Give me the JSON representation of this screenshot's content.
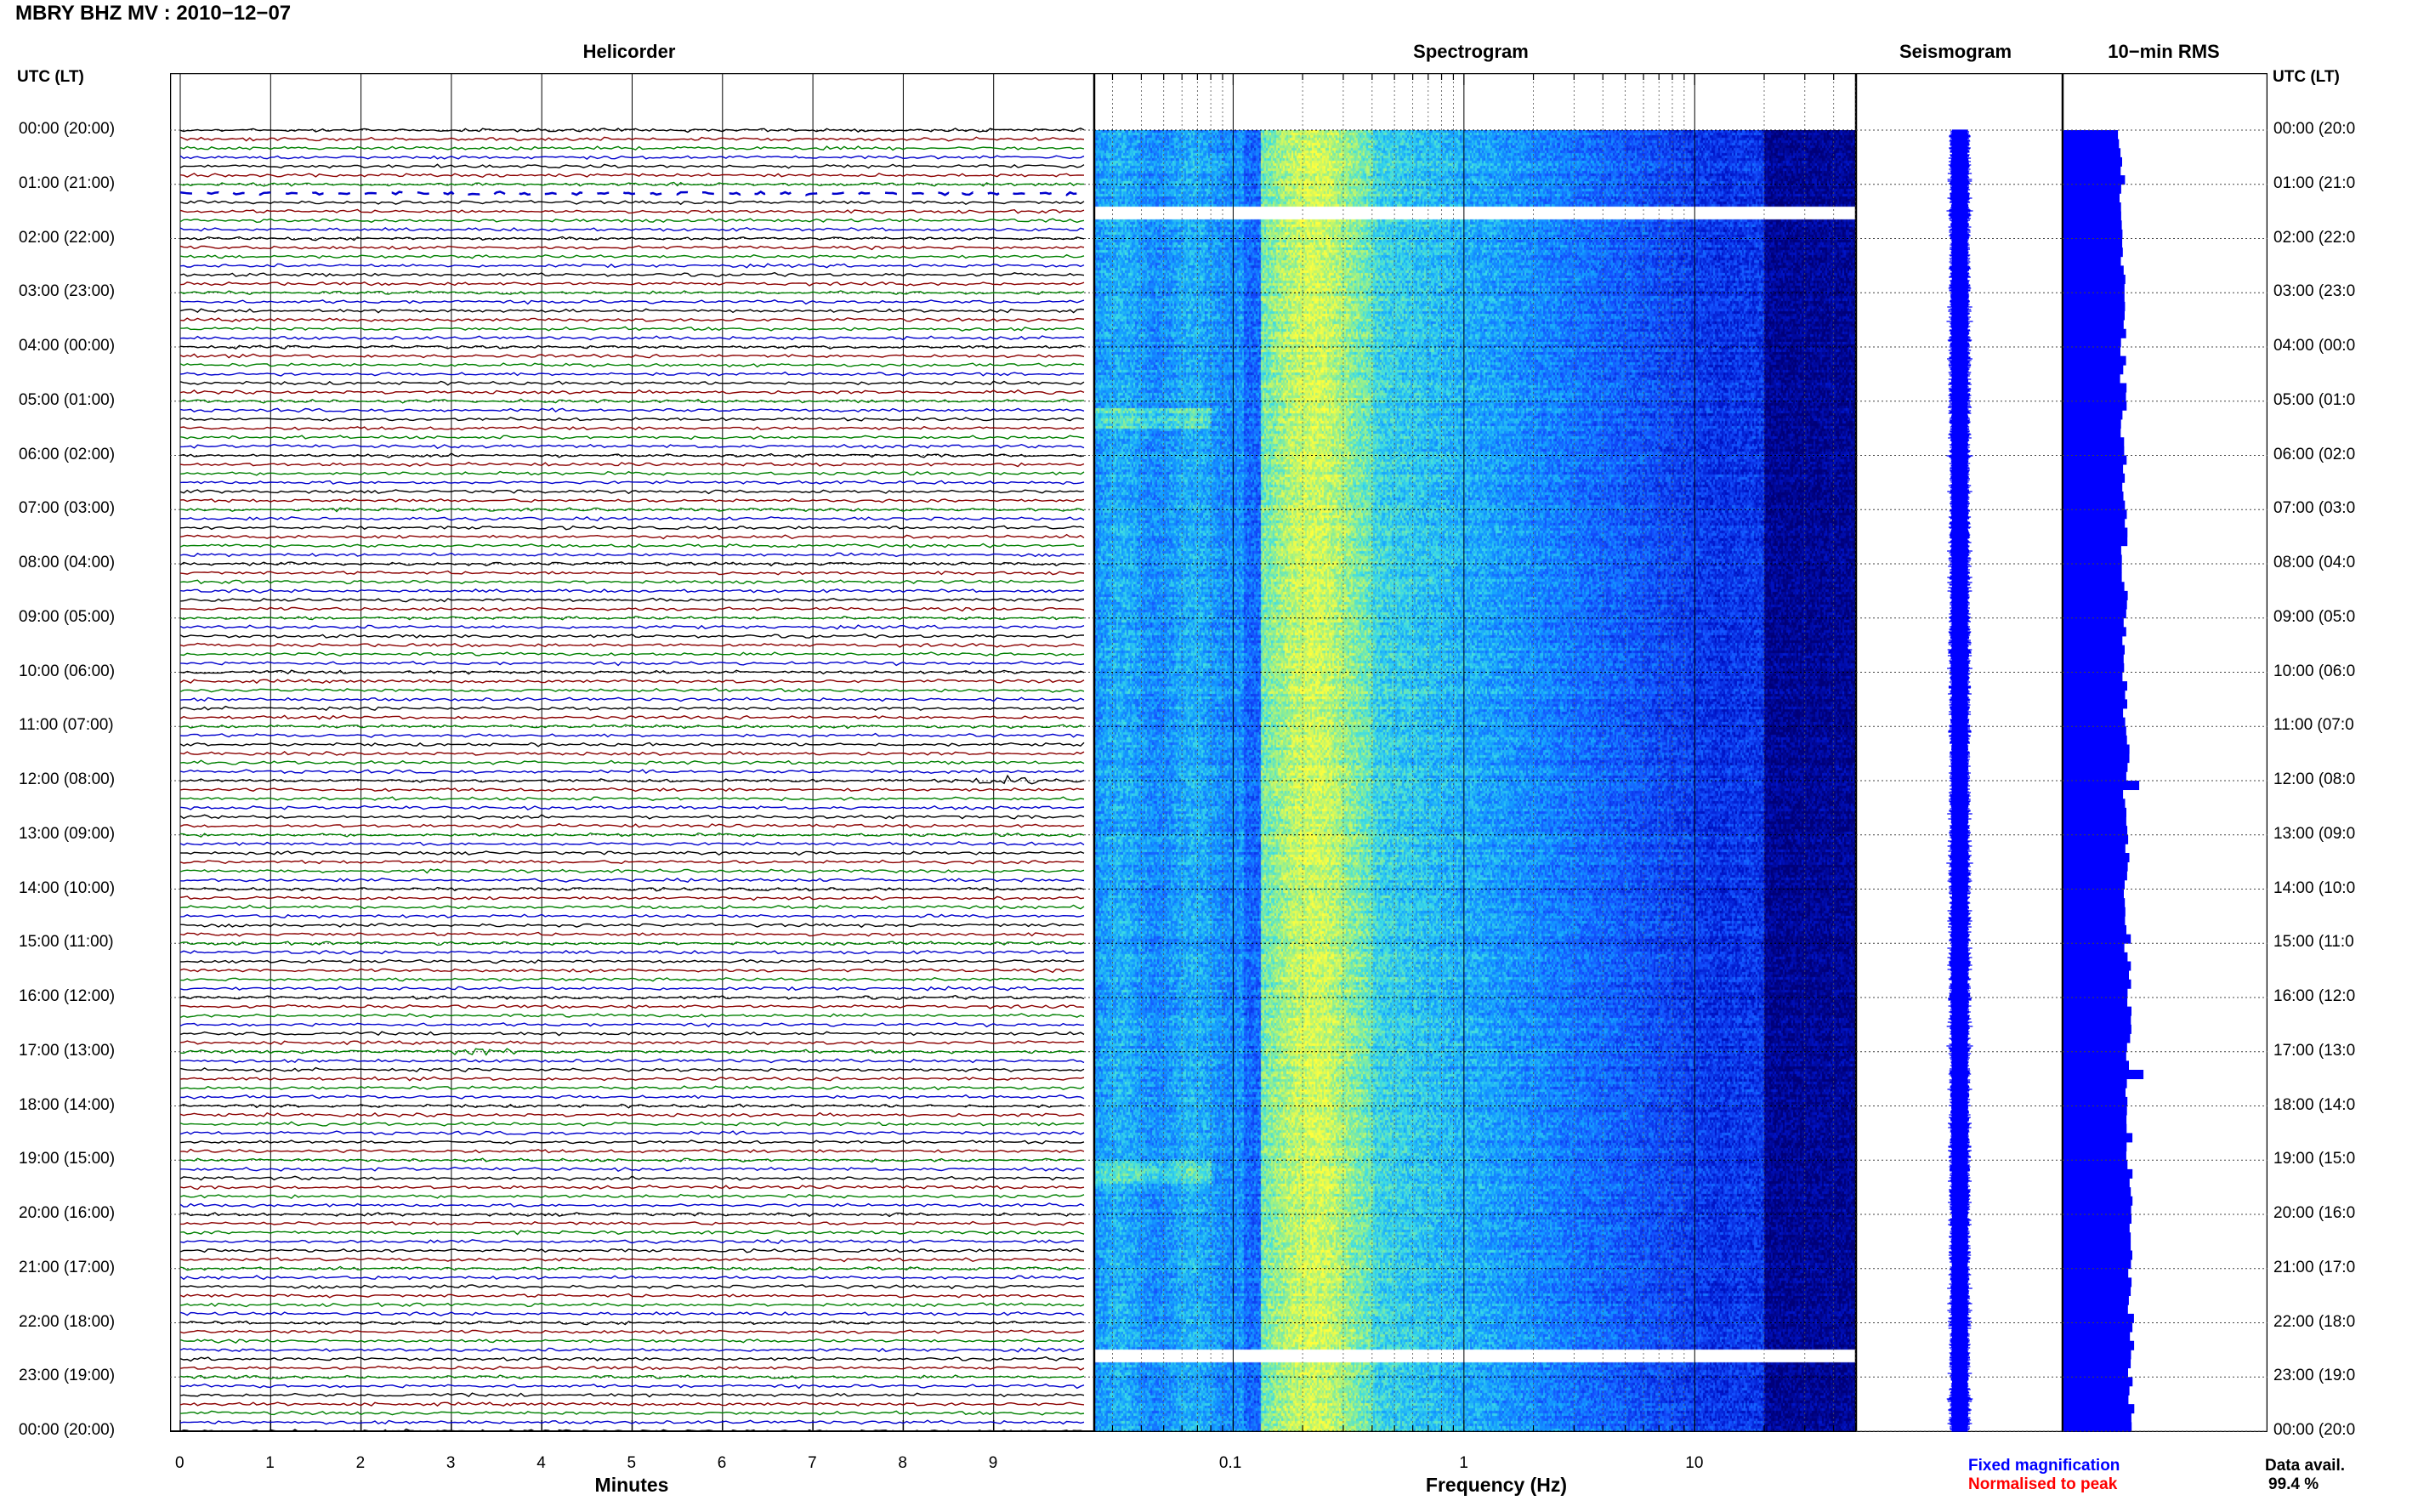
{
  "header": {
    "title": "MBRY BHZ MV : 2010−12−07"
  },
  "panels": {
    "helicorder": "Helicorder",
    "spectrogram": "Spectrogram",
    "seismogram": "Seismogram",
    "rms": "10−min RMS"
  },
  "time_axis": {
    "label_left": "UTC (LT)",
    "label_right": "UTC (LT)",
    "hour_labels": [
      "00:00 (20:00)",
      "01:00 (21:00)",
      "02:00 (22:00)",
      "03:00 (23:00)",
      "04:00 (00:00)",
      "05:00 (01:00)",
      "06:00 (02:00)",
      "07:00 (03:00)",
      "08:00 (04:00)",
      "09:00 (05:00)",
      "10:00 (06:00)",
      "11:00 (07:00)",
      "12:00 (08:00)",
      "13:00 (09:00)",
      "14:00 (10:00)",
      "15:00 (11:00)",
      "16:00 (12:00)",
      "17:00 (13:00)",
      "18:00 (14:00)",
      "19:00 (15:00)",
      "20:00 (16:00)",
      "21:00 (17:00)",
      "22:00 (18:00)",
      "23:00 (19:00)",
      "00:00 (20:00)"
    ],
    "hour_labels_right": [
      "00:00 (20:0",
      "01:00 (21:0",
      "02:00 (22:0",
      "03:00 (23:0",
      "04:00 (00:0",
      "05:00 (01:0",
      "06:00 (02:0",
      "07:00 (03:0",
      "08:00 (04:0",
      "09:00 (05:0",
      "10:00 (06:0",
      "11:00 (07:0",
      "12:00 (08:0",
      "13:00 (09:0",
      "14:00 (10:0",
      "15:00 (11:0",
      "16:00 (12:0",
      "17:00 (13:0",
      "18:00 (14:0",
      "19:00 (15:0",
      "20:00 (16:0",
      "21:00 (17:0",
      "22:00 (18:0",
      "23:00 (19:0",
      "00:00 (20:0"
    ]
  },
  "footer": {
    "minutes_label": "Minutes",
    "frequency_label": "Frequency (Hz)",
    "legend_fixed": "Fixed magnification",
    "legend_normalised": "Normalised to peak",
    "data_avail_label": "Data avail.",
    "data_avail_value": "99.4 %"
  },
  "colors": {
    "fixed_magnification": "#0000ff",
    "normalised_to_peak": "#ff0000",
    "trace_colors": [
      "#000000",
      "#8b0000",
      "#008000",
      "#0000cd"
    ],
    "bar_blue": "#0000ff"
  },
  "chart_data": [
    {
      "type": "line",
      "name": "Helicorder",
      "x_axis": {
        "label": "Minutes",
        "ticks": [
          0,
          1,
          2,
          3,
          4,
          5,
          6,
          7,
          8,
          9
        ],
        "range": [
          0,
          10
        ]
      },
      "y_axis": {
        "hours": 24,
        "lines_per_hour": 6,
        "minutes_per_line": 10
      },
      "events": [
        {
          "hour": 12,
          "minute_in_line": 8.9
        },
        {
          "hour": 17,
          "minute_in_line": 3.1
        }
      ],
      "gaps": [
        {
          "hour": 1,
          "note": ""
        }
      ]
    },
    {
      "type": "heatmap",
      "name": "Spectrogram",
      "x_axis": {
        "label": "Frequency (Hz)",
        "scale": "log",
        "range": [
          0.025,
          50
        ],
        "tick_labels": [
          "0.1",
          "1",
          "10"
        ]
      },
      "gaps_hours": [
        1.5,
        22.6
      ]
    },
    {
      "type": "line",
      "name": "Seismogram"
    },
    {
      "type": "bar",
      "name": "10-min RMS",
      "orientation": "horizontal",
      "bins": 144,
      "spikes_hours": [
        12.0,
        17.3
      ]
    }
  ]
}
